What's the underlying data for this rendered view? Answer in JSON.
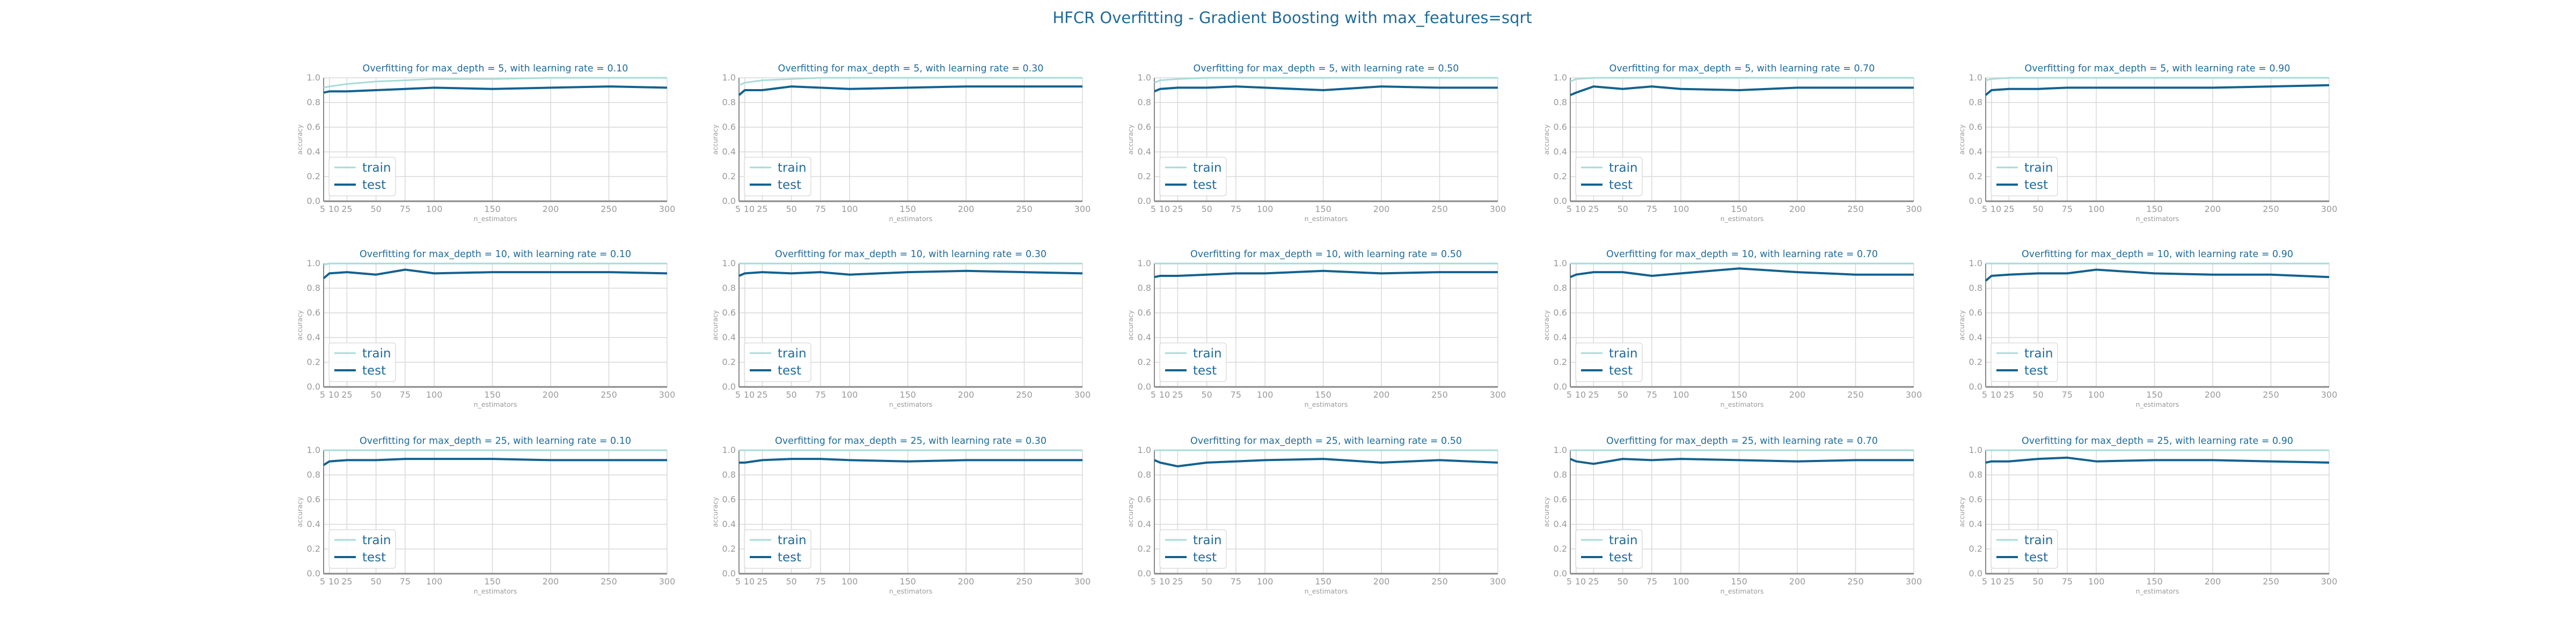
{
  "figure_title": "HFCR Overfitting - Gradient Boosting with max_features=sqrt",
  "colors": {
    "title": "#1f6b9a",
    "train": "#a6dcd8",
    "test": "#12628f",
    "grid": "#d9d9d9",
    "axis": "#888888"
  },
  "chart_data": [
    {
      "type": "line",
      "title": "Overfitting for max_depth = 5, with learning rate = 0.10",
      "xlabel": "n_estimators",
      "ylabel": "accuracy",
      "x": [
        5,
        10,
        25,
        50,
        75,
        100,
        150,
        200,
        250,
        300
      ],
      "xticks": [
        "5",
        "10",
        "25",
        "50",
        "75",
        "100",
        "150",
        "200",
        "250",
        "300"
      ],
      "ylim": [
        0,
        1
      ],
      "yticks": [
        "0.0",
        "0.2",
        "0.4",
        "0.6",
        "0.8",
        "1.0"
      ],
      "grid": true,
      "legend": "lower-left",
      "series": [
        {
          "name": "train",
          "values": [
            0.92,
            0.93,
            0.95,
            0.97,
            0.98,
            0.99,
            0.99,
            1.0,
            1.0,
            1.0
          ]
        },
        {
          "name": "test",
          "values": [
            0.88,
            0.89,
            0.89,
            0.9,
            0.91,
            0.92,
            0.91,
            0.92,
            0.93,
            0.92
          ]
        }
      ]
    },
    {
      "type": "line",
      "title": "Overfitting for max_depth = 5, with learning rate = 0.30",
      "xlabel": "n_estimators",
      "ylabel": "accuracy",
      "x": [
        5,
        10,
        25,
        50,
        75,
        100,
        150,
        200,
        250,
        300
      ],
      "xticks": [
        "5",
        "10",
        "25",
        "50",
        "75",
        "100",
        "150",
        "200",
        "250",
        "300"
      ],
      "ylim": [
        0,
        1
      ],
      "yticks": [
        "0.0",
        "0.2",
        "0.4",
        "0.6",
        "0.8",
        "1.0"
      ],
      "grid": true,
      "legend": "lower-left",
      "series": [
        {
          "name": "train",
          "values": [
            0.94,
            0.96,
            0.98,
            0.99,
            1.0,
            1.0,
            1.0,
            1.0,
            1.0,
            1.0
          ]
        },
        {
          "name": "test",
          "values": [
            0.86,
            0.9,
            0.9,
            0.93,
            0.92,
            0.91,
            0.92,
            0.93,
            0.93,
            0.93
          ]
        }
      ]
    },
    {
      "type": "line",
      "title": "Overfitting for max_depth = 5, with learning rate = 0.50",
      "xlabel": "n_estimators",
      "ylabel": "accuracy",
      "x": [
        5,
        10,
        25,
        50,
        75,
        100,
        150,
        200,
        250,
        300
      ],
      "xticks": [
        "5",
        "10",
        "25",
        "50",
        "75",
        "100",
        "150",
        "200",
        "250",
        "300"
      ],
      "ylim": [
        0,
        1
      ],
      "yticks": [
        "0.0",
        "0.2",
        "0.4",
        "0.6",
        "0.8",
        "1.0"
      ],
      "grid": true,
      "legend": "lower-left",
      "series": [
        {
          "name": "train",
          "values": [
            0.96,
            0.98,
            0.99,
            1.0,
            1.0,
            1.0,
            1.0,
            1.0,
            1.0,
            1.0
          ]
        },
        {
          "name": "test",
          "values": [
            0.89,
            0.91,
            0.92,
            0.92,
            0.93,
            0.92,
            0.9,
            0.93,
            0.92,
            0.92
          ]
        }
      ]
    },
    {
      "type": "line",
      "title": "Overfitting for max_depth = 5, with learning rate = 0.70",
      "xlabel": "n_estimators",
      "ylabel": "accuracy",
      "x": [
        5,
        10,
        25,
        50,
        75,
        100,
        150,
        200,
        250,
        300
      ],
      "xticks": [
        "5",
        "10",
        "25",
        "50",
        "75",
        "100",
        "150",
        "200",
        "250",
        "300"
      ],
      "ylim": [
        0,
        1
      ],
      "yticks": [
        "0.0",
        "0.2",
        "0.4",
        "0.6",
        "0.8",
        "1.0"
      ],
      "grid": true,
      "legend": "lower-left",
      "series": [
        {
          "name": "train",
          "values": [
            0.97,
            0.99,
            1.0,
            1.0,
            1.0,
            1.0,
            1.0,
            1.0,
            1.0,
            1.0
          ]
        },
        {
          "name": "test",
          "values": [
            0.86,
            0.88,
            0.93,
            0.91,
            0.93,
            0.91,
            0.9,
            0.92,
            0.92,
            0.92
          ]
        }
      ]
    },
    {
      "type": "line",
      "title": "Overfitting for max_depth = 5, with learning rate = 0.90",
      "xlabel": "n_estimators",
      "ylabel": "accuracy",
      "x": [
        5,
        10,
        25,
        50,
        75,
        100,
        150,
        200,
        250,
        300
      ],
      "xticks": [
        "5",
        "10",
        "25",
        "50",
        "75",
        "100",
        "150",
        "200",
        "250",
        "300"
      ],
      "ylim": [
        0,
        1
      ],
      "yticks": [
        "0.0",
        "0.2",
        "0.4",
        "0.6",
        "0.8",
        "1.0"
      ],
      "grid": true,
      "legend": "lower-left",
      "series": [
        {
          "name": "train",
          "values": [
            0.98,
            0.99,
            1.0,
            1.0,
            1.0,
            1.0,
            1.0,
            1.0,
            1.0,
            1.0
          ]
        },
        {
          "name": "test",
          "values": [
            0.86,
            0.9,
            0.91,
            0.91,
            0.92,
            0.92,
            0.92,
            0.92,
            0.93,
            0.94
          ]
        }
      ]
    },
    {
      "type": "line",
      "title": "Overfitting for max_depth = 10, with learning rate = 0.10",
      "xlabel": "n_estimators",
      "ylabel": "accuracy",
      "x": [
        5,
        10,
        25,
        50,
        75,
        100,
        150,
        200,
        250,
        300
      ],
      "xticks": [
        "5",
        "10",
        "25",
        "50",
        "75",
        "100",
        "150",
        "200",
        "250",
        "300"
      ],
      "ylim": [
        0,
        1
      ],
      "yticks": [
        "0.0",
        "0.2",
        "0.4",
        "0.6",
        "0.8",
        "1.0"
      ],
      "grid": true,
      "legend": "lower-left",
      "series": [
        {
          "name": "train",
          "values": [
            0.99,
            1.0,
            1.0,
            1.0,
            1.0,
            1.0,
            1.0,
            1.0,
            1.0,
            1.0
          ]
        },
        {
          "name": "test",
          "values": [
            0.88,
            0.92,
            0.93,
            0.91,
            0.95,
            0.92,
            0.93,
            0.93,
            0.93,
            0.92
          ]
        }
      ]
    },
    {
      "type": "line",
      "title": "Overfitting for max_depth = 10, with learning rate = 0.30",
      "xlabel": "n_estimators",
      "ylabel": "accuracy",
      "x": [
        5,
        10,
        25,
        50,
        75,
        100,
        150,
        200,
        250,
        300
      ],
      "xticks": [
        "5",
        "10",
        "25",
        "50",
        "75",
        "100",
        "150",
        "200",
        "250",
        "300"
      ],
      "ylim": [
        0,
        1
      ],
      "yticks": [
        "0.0",
        "0.2",
        "0.4",
        "0.6",
        "0.8",
        "1.0"
      ],
      "grid": true,
      "legend": "lower-left",
      "series": [
        {
          "name": "train",
          "values": [
            1.0,
            1.0,
            1.0,
            1.0,
            1.0,
            1.0,
            1.0,
            1.0,
            1.0,
            1.0
          ]
        },
        {
          "name": "test",
          "values": [
            0.9,
            0.92,
            0.93,
            0.92,
            0.93,
            0.91,
            0.93,
            0.94,
            0.93,
            0.92
          ]
        }
      ]
    },
    {
      "type": "line",
      "title": "Overfitting for max_depth = 10, with learning rate = 0.50",
      "xlabel": "n_estimators",
      "ylabel": "accuracy",
      "x": [
        5,
        10,
        25,
        50,
        75,
        100,
        150,
        200,
        250,
        300
      ],
      "xticks": [
        "5",
        "10",
        "25",
        "50",
        "75",
        "100",
        "150",
        "200",
        "250",
        "300"
      ],
      "ylim": [
        0,
        1
      ],
      "yticks": [
        "0.0",
        "0.2",
        "0.4",
        "0.6",
        "0.8",
        "1.0"
      ],
      "grid": true,
      "legend": "lower-left",
      "series": [
        {
          "name": "train",
          "values": [
            1.0,
            1.0,
            1.0,
            1.0,
            1.0,
            1.0,
            1.0,
            1.0,
            1.0,
            1.0
          ]
        },
        {
          "name": "test",
          "values": [
            0.89,
            0.9,
            0.9,
            0.91,
            0.92,
            0.92,
            0.94,
            0.92,
            0.93,
            0.93
          ]
        }
      ]
    },
    {
      "type": "line",
      "title": "Overfitting for max_depth = 10, with learning rate = 0.70",
      "xlabel": "n_estimators",
      "ylabel": "accuracy",
      "x": [
        5,
        10,
        25,
        50,
        75,
        100,
        150,
        200,
        250,
        300
      ],
      "xticks": [
        "5",
        "10",
        "25",
        "50",
        "75",
        "100",
        "150",
        "200",
        "250",
        "300"
      ],
      "ylim": [
        0,
        1
      ],
      "yticks": [
        "0.0",
        "0.2",
        "0.4",
        "0.6",
        "0.8",
        "1.0"
      ],
      "grid": true,
      "legend": "lower-left",
      "series": [
        {
          "name": "train",
          "values": [
            1.0,
            1.0,
            1.0,
            1.0,
            1.0,
            1.0,
            1.0,
            1.0,
            1.0,
            1.0
          ]
        },
        {
          "name": "test",
          "values": [
            0.89,
            0.91,
            0.93,
            0.93,
            0.9,
            0.92,
            0.96,
            0.93,
            0.91,
            0.91
          ]
        }
      ]
    },
    {
      "type": "line",
      "title": "Overfitting for max_depth = 10, with learning rate = 0.90",
      "xlabel": "n_estimators",
      "ylabel": "accuracy",
      "x": [
        5,
        10,
        25,
        50,
        75,
        100,
        150,
        200,
        250,
        300
      ],
      "xticks": [
        "5",
        "10",
        "25",
        "50",
        "75",
        "100",
        "150",
        "200",
        "250",
        "300"
      ],
      "ylim": [
        0,
        1
      ],
      "yticks": [
        "0.0",
        "0.2",
        "0.4",
        "0.6",
        "0.8",
        "1.0"
      ],
      "grid": true,
      "legend": "lower-left",
      "series": [
        {
          "name": "train",
          "values": [
            1.0,
            1.0,
            1.0,
            1.0,
            1.0,
            1.0,
            1.0,
            1.0,
            1.0,
            1.0
          ]
        },
        {
          "name": "test",
          "values": [
            0.86,
            0.9,
            0.91,
            0.92,
            0.92,
            0.95,
            0.92,
            0.91,
            0.91,
            0.89
          ]
        }
      ]
    },
    {
      "type": "line",
      "title": "Overfitting for max_depth = 25, with learning rate = 0.10",
      "xlabel": "n_estimators",
      "ylabel": "accuracy",
      "x": [
        5,
        10,
        25,
        50,
        75,
        100,
        150,
        200,
        250,
        300
      ],
      "xticks": [
        "5",
        "10",
        "25",
        "50",
        "75",
        "100",
        "150",
        "200",
        "250",
        "300"
      ],
      "ylim": [
        0,
        1
      ],
      "yticks": [
        "0.0",
        "0.2",
        "0.4",
        "0.6",
        "0.8",
        "1.0"
      ],
      "grid": true,
      "legend": "lower-left",
      "series": [
        {
          "name": "train",
          "values": [
            1.0,
            1.0,
            1.0,
            1.0,
            1.0,
            1.0,
            1.0,
            1.0,
            1.0,
            1.0
          ]
        },
        {
          "name": "test",
          "values": [
            0.88,
            0.91,
            0.92,
            0.92,
            0.93,
            0.93,
            0.93,
            0.92,
            0.92,
            0.92
          ]
        }
      ]
    },
    {
      "type": "line",
      "title": "Overfitting for max_depth = 25, with learning rate = 0.30",
      "xlabel": "n_estimators",
      "ylabel": "accuracy",
      "x": [
        5,
        10,
        25,
        50,
        75,
        100,
        150,
        200,
        250,
        300
      ],
      "xticks": [
        "5",
        "10",
        "25",
        "50",
        "75",
        "100",
        "150",
        "200",
        "250",
        "300"
      ],
      "ylim": [
        0,
        1
      ],
      "yticks": [
        "0.0",
        "0.2",
        "0.4",
        "0.6",
        "0.8",
        "1.0"
      ],
      "grid": true,
      "legend": "lower-left",
      "series": [
        {
          "name": "train",
          "values": [
            1.0,
            1.0,
            1.0,
            1.0,
            1.0,
            1.0,
            1.0,
            1.0,
            1.0,
            1.0
          ]
        },
        {
          "name": "test",
          "values": [
            0.9,
            0.9,
            0.92,
            0.93,
            0.93,
            0.92,
            0.91,
            0.92,
            0.92,
            0.92
          ]
        }
      ]
    },
    {
      "type": "line",
      "title": "Overfitting for max_depth = 25, with learning rate = 0.50",
      "xlabel": "n_estimators",
      "ylabel": "accuracy",
      "x": [
        5,
        10,
        25,
        50,
        75,
        100,
        150,
        200,
        250,
        300
      ],
      "xticks": [
        "5",
        "10",
        "25",
        "50",
        "75",
        "100",
        "150",
        "200",
        "250",
        "300"
      ],
      "ylim": [
        0,
        1
      ],
      "yticks": [
        "0.0",
        "0.2",
        "0.4",
        "0.6",
        "0.8",
        "1.0"
      ],
      "grid": true,
      "legend": "lower-left",
      "series": [
        {
          "name": "train",
          "values": [
            1.0,
            1.0,
            1.0,
            1.0,
            1.0,
            1.0,
            1.0,
            1.0,
            1.0,
            1.0
          ]
        },
        {
          "name": "test",
          "values": [
            0.92,
            0.9,
            0.87,
            0.9,
            0.91,
            0.92,
            0.93,
            0.9,
            0.92,
            0.9
          ]
        }
      ]
    },
    {
      "type": "line",
      "title": "Overfitting for max_depth = 25, with learning rate = 0.70",
      "xlabel": "n_estimators",
      "ylabel": "accuracy",
      "x": [
        5,
        10,
        25,
        50,
        75,
        100,
        150,
        200,
        250,
        300
      ],
      "xticks": [
        "5",
        "10",
        "25",
        "50",
        "75",
        "100",
        "150",
        "200",
        "250",
        "300"
      ],
      "ylim": [
        0,
        1
      ],
      "yticks": [
        "0.0",
        "0.2",
        "0.4",
        "0.6",
        "0.8",
        "1.0"
      ],
      "grid": true,
      "legend": "lower-left",
      "series": [
        {
          "name": "train",
          "values": [
            1.0,
            1.0,
            1.0,
            1.0,
            1.0,
            1.0,
            1.0,
            1.0,
            1.0,
            1.0
          ]
        },
        {
          "name": "test",
          "values": [
            0.93,
            0.91,
            0.89,
            0.93,
            0.92,
            0.93,
            0.92,
            0.91,
            0.92,
            0.92
          ]
        }
      ]
    },
    {
      "type": "line",
      "title": "Overfitting for max_depth = 25, with learning rate = 0.90",
      "xlabel": "n_estimators",
      "ylabel": "accuracy",
      "x": [
        5,
        10,
        25,
        50,
        75,
        100,
        150,
        200,
        250,
        300
      ],
      "xticks": [
        "5",
        "10",
        "25",
        "50",
        "75",
        "100",
        "150",
        "200",
        "250",
        "300"
      ],
      "ylim": [
        0,
        1
      ],
      "yticks": [
        "0.0",
        "0.2",
        "0.4",
        "0.6",
        "0.8",
        "1.0"
      ],
      "grid": true,
      "legend": "lower-left",
      "series": [
        {
          "name": "train",
          "values": [
            1.0,
            1.0,
            1.0,
            1.0,
            1.0,
            1.0,
            1.0,
            1.0,
            1.0,
            1.0
          ]
        },
        {
          "name": "test",
          "values": [
            0.9,
            0.91,
            0.91,
            0.93,
            0.94,
            0.91,
            0.92,
            0.92,
            0.91,
            0.9
          ]
        }
      ]
    }
  ]
}
